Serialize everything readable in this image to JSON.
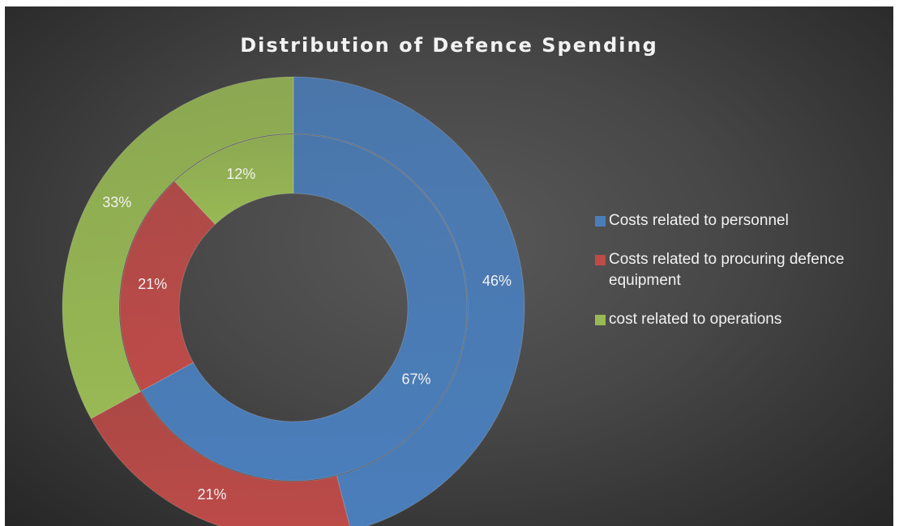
{
  "chart_data": {
    "type": "doughnut",
    "title": "Distribution of Defence Spending",
    "categories": [
      "Costs related to personnel",
      "Costs related to procuring defence equipment",
      "cost related to operations"
    ],
    "colors": [
      "#4a7ebb",
      "#be4b48",
      "#98b954"
    ],
    "series": [
      {
        "values": [
          67,
          21,
          12
        ],
        "labels": [
          "67%",
          "21%",
          "12%"
        ]
      },
      {
        "values": [
          46,
          21,
          33
        ],
        "labels": [
          "46%",
          "21%",
          "33%"
        ]
      }
    ],
    "legend_position": "right"
  }
}
